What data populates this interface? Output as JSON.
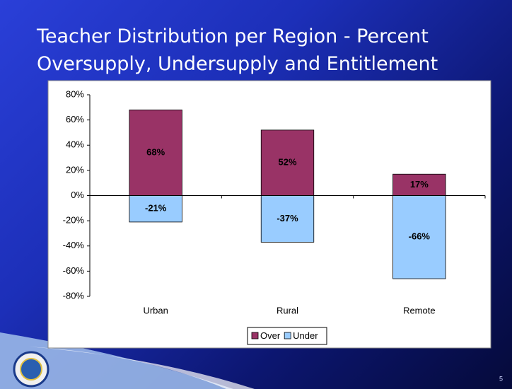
{
  "page_number": "5",
  "chart_data": {
    "type": "bar",
    "title": [
      "Teacher Distribution per Region -  Percent",
      "Oversupply, Undersupply and Entitlement"
    ],
    "categories": [
      "Urban",
      "Rural",
      "Remote"
    ],
    "series": [
      {
        "name": "Over",
        "color": "#993366",
        "values": [
          68,
          52,
          17
        ],
        "value_labels": [
          "68%",
          "52%",
          "17%"
        ]
      },
      {
        "name": "Under",
        "color": "#99ccff",
        "values": [
          -21,
          -37,
          -66
        ],
        "value_labels": [
          "-21%",
          "-37%",
          "-66%"
        ]
      }
    ],
    "ylim": [
      -80,
      80
    ],
    "yticks": [
      {
        "value": -80,
        "label": "-80%"
      },
      {
        "value": -60,
        "label": "-60%"
      },
      {
        "value": -40,
        "label": "-40%"
      },
      {
        "value": -20,
        "label": "-20%"
      },
      {
        "value": 0,
        "label": "0%"
      },
      {
        "value": 20,
        "label": "20%"
      },
      {
        "value": 40,
        "label": "40%"
      },
      {
        "value": 60,
        "label": "60%"
      },
      {
        "value": 80,
        "label": "80%"
      }
    ],
    "grid": false,
    "legend": "bottom"
  }
}
